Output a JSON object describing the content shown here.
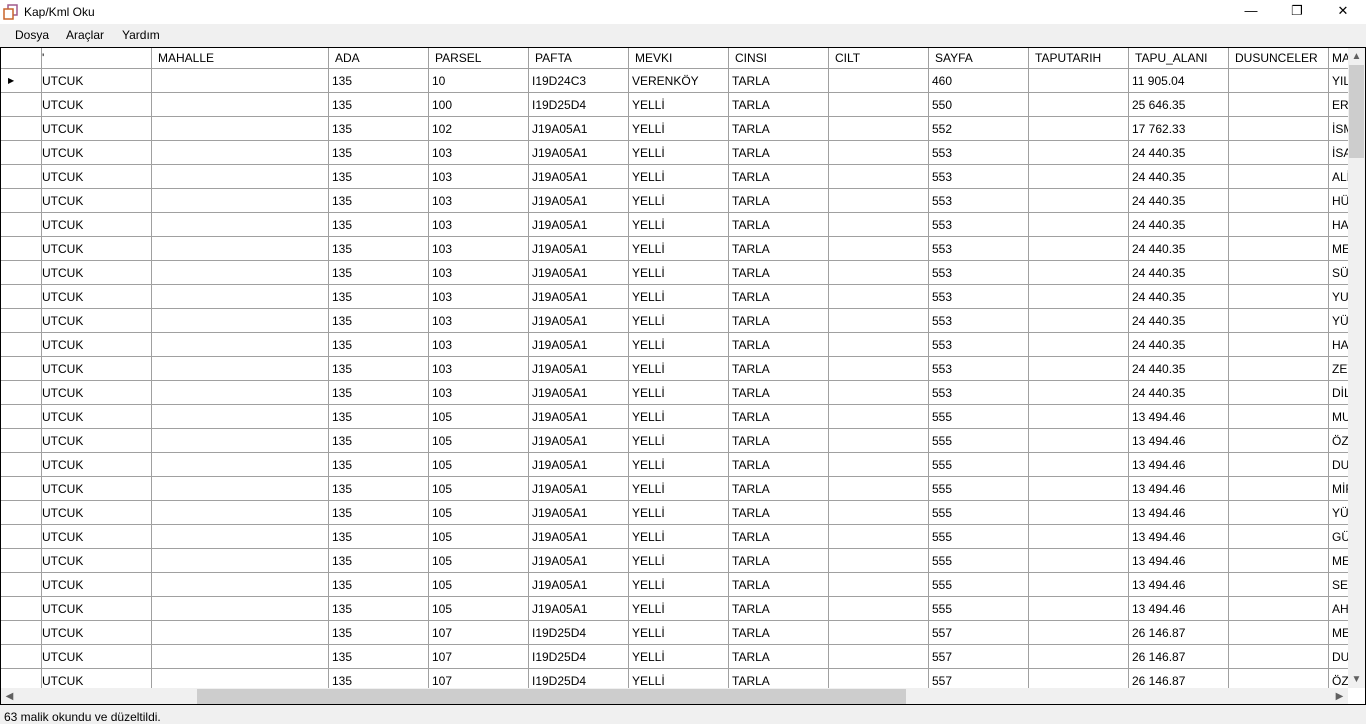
{
  "window": {
    "title": "Kap/Kml Oku",
    "minimize": "—",
    "restore": "❐",
    "close": "✕"
  },
  "menu": [
    "Dosya",
    "Araçlar",
    "Yardım"
  ],
  "grid": {
    "columns": [
      "'",
      "MAHALLE",
      "ADA",
      "PARSEL",
      "PAFTA",
      "MEVKI",
      "CINSI",
      "CILT",
      "SAYFA",
      "TAPUTARIH",
      "TAPU_ALANI",
      "DUSUNCELER",
      "MA"
    ],
    "rows": [
      [
        "UTCUK",
        "",
        "135",
        "10",
        "I19D24C3",
        "VERENKÖY",
        "TARLA",
        "",
        "460",
        "",
        "11 905.04",
        "",
        "YIL"
      ],
      [
        "UTCUK",
        "",
        "135",
        "100",
        "I19D25D4",
        "YELLİ",
        "TARLA",
        "",
        "550",
        "",
        "25 646.35",
        "",
        "ERG"
      ],
      [
        "UTCUK",
        "",
        "135",
        "102",
        "J19A05A1",
        "YELLİ",
        "TARLA",
        "",
        "552",
        "",
        "17 762.33",
        "",
        "İSM"
      ],
      [
        "UTCUK",
        "",
        "135",
        "103",
        "J19A05A1",
        "YELLİ",
        "TARLA",
        "",
        "553",
        "",
        "24 440.35",
        "",
        "İSA"
      ],
      [
        "UTCUK",
        "",
        "135",
        "103",
        "J19A05A1",
        "YELLİ",
        "TARLA",
        "",
        "553",
        "",
        "24 440.35",
        "",
        "ALİ"
      ],
      [
        "UTCUK",
        "",
        "135",
        "103",
        "J19A05A1",
        "YELLİ",
        "TARLA",
        "",
        "553",
        "",
        "24 440.35",
        "",
        "HÜS"
      ],
      [
        "UTCUK",
        "",
        "135",
        "103",
        "J19A05A1",
        "YELLİ",
        "TARLA",
        "",
        "553",
        "",
        "24 440.35",
        "",
        "HAY"
      ],
      [
        "UTCUK",
        "",
        "135",
        "103",
        "J19A05A1",
        "YELLİ",
        "TARLA",
        "",
        "553",
        "",
        "24 440.35",
        "",
        "MEH"
      ],
      [
        "UTCUK",
        "",
        "135",
        "103",
        "J19A05A1",
        "YELLİ",
        "TARLA",
        "",
        "553",
        "",
        "24 440.35",
        "",
        "SÜL"
      ],
      [
        "UTCUK",
        "",
        "135",
        "103",
        "J19A05A1",
        "YELLİ",
        "TARLA",
        "",
        "553",
        "",
        "24 440.35",
        "",
        "YUS"
      ],
      [
        "UTCUK",
        "",
        "135",
        "103",
        "J19A05A1",
        "YELLİ",
        "TARLA",
        "",
        "553",
        "",
        "24 440.35",
        "",
        "YÜC"
      ],
      [
        "UTCUK",
        "",
        "135",
        "103",
        "J19A05A1",
        "YELLİ",
        "TARLA",
        "",
        "553",
        "",
        "24 440.35",
        "",
        "HAL"
      ],
      [
        "UTCUK",
        "",
        "135",
        "103",
        "J19A05A1",
        "YELLİ",
        "TARLA",
        "",
        "553",
        "",
        "24 440.35",
        "",
        "ZEY"
      ],
      [
        "UTCUK",
        "",
        "135",
        "103",
        "J19A05A1",
        "YELLİ",
        "TARLA",
        "",
        "553",
        "",
        "24 440.35",
        "",
        "DİL"
      ],
      [
        "UTCUK",
        "",
        "135",
        "105",
        "J19A05A1",
        "YELLİ",
        "TARLA",
        "",
        "555",
        "",
        "13 494.46",
        "",
        "MU"
      ],
      [
        "UTCUK",
        "",
        "135",
        "105",
        "J19A05A1",
        "YELLİ",
        "TARLA",
        "",
        "555",
        "",
        "13 494.46",
        "",
        "ÖZG"
      ],
      [
        "UTCUK",
        "",
        "135",
        "105",
        "J19A05A1",
        "YELLİ",
        "TARLA",
        "",
        "555",
        "",
        "13 494.46",
        "",
        "DUR"
      ],
      [
        "UTCUK",
        "",
        "135",
        "105",
        "J19A05A1",
        "YELLİ",
        "TARLA",
        "",
        "555",
        "",
        "13 494.46",
        "",
        "MİR"
      ],
      [
        "UTCUK",
        "",
        "135",
        "105",
        "J19A05A1",
        "YELLİ",
        "TARLA",
        "",
        "555",
        "",
        "13 494.46",
        "",
        "YÜC"
      ],
      [
        "UTCUK",
        "",
        "135",
        "105",
        "J19A05A1",
        "YELLİ",
        "TARLA",
        "",
        "555",
        "",
        "13 494.46",
        "",
        "GÜL"
      ],
      [
        "UTCUK",
        "",
        "135",
        "105",
        "J19A05A1",
        "YELLİ",
        "TARLA",
        "",
        "555",
        "",
        "13 494.46",
        "",
        "MEH"
      ],
      [
        "UTCUK",
        "",
        "135",
        "105",
        "J19A05A1",
        "YELLİ",
        "TARLA",
        "",
        "555",
        "",
        "13 494.46",
        "",
        "SEV"
      ],
      [
        "UTCUK",
        "",
        "135",
        "105",
        "J19A05A1",
        "YELLİ",
        "TARLA",
        "",
        "555",
        "",
        "13 494.46",
        "",
        "AHM"
      ],
      [
        "UTCUK",
        "",
        "135",
        "107",
        "I19D25D4",
        "YELLİ",
        "TARLA",
        "",
        "557",
        "",
        "26 146.87",
        "",
        "MEH"
      ],
      [
        "UTCUK",
        "",
        "135",
        "107",
        "I19D25D4",
        "YELLİ",
        "TARLA",
        "",
        "557",
        "",
        "26 146.87",
        "",
        "DUR"
      ],
      [
        "UTCUK",
        "",
        "135",
        "107",
        "I19D25D4",
        "YELLİ",
        "TARLA",
        "",
        "557",
        "",
        "26 146.87",
        "",
        "ÖZG"
      ]
    ]
  },
  "status": "63 malik okundu ve düzeltildi."
}
